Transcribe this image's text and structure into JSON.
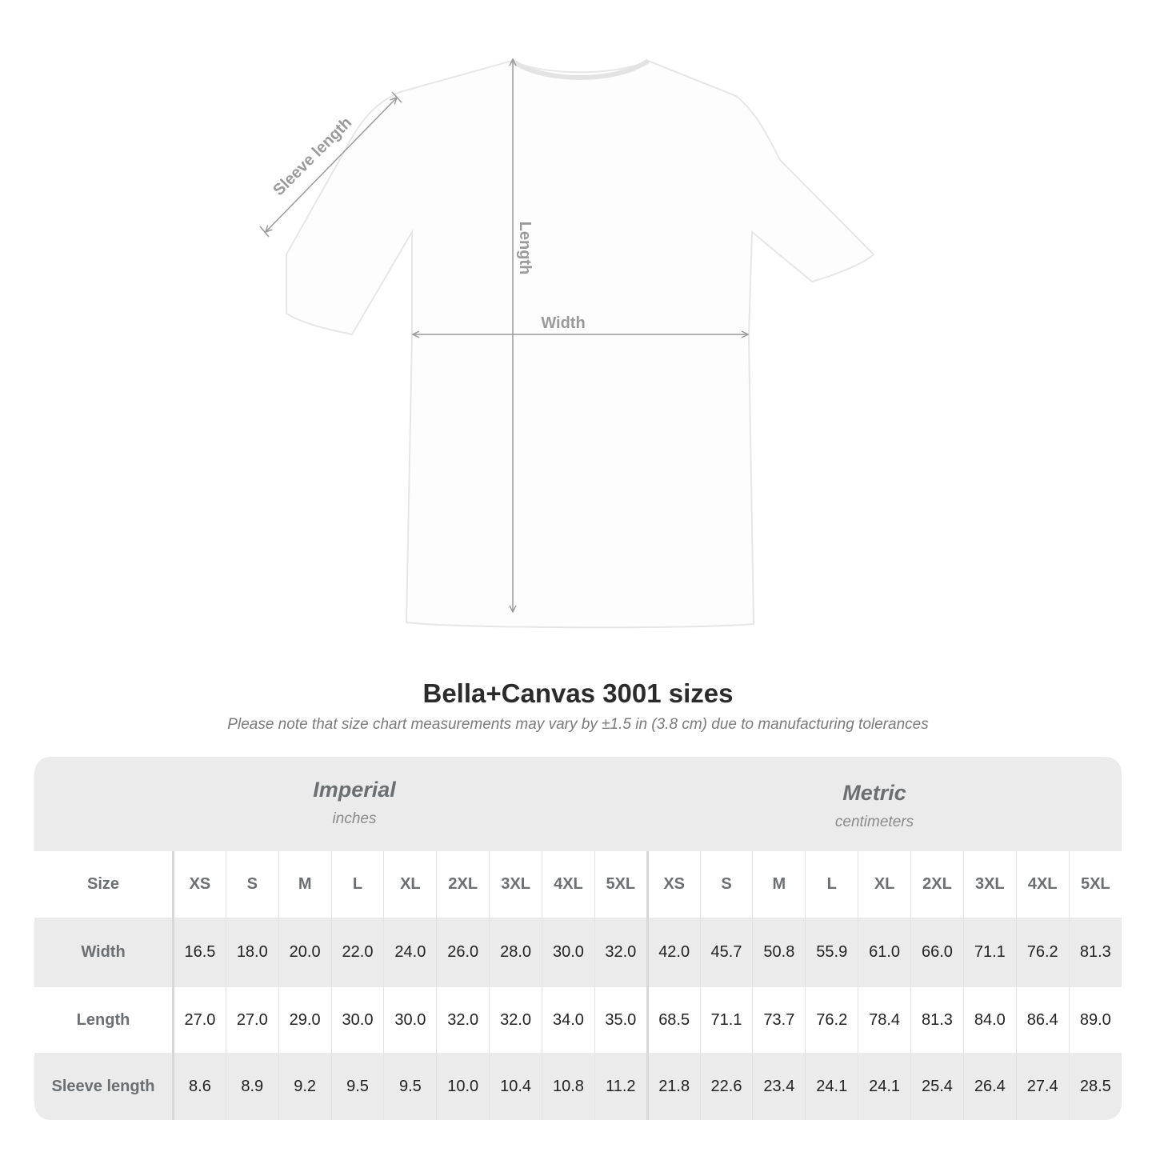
{
  "diagram": {
    "labels": {
      "sleeve": "Sleeve length",
      "length": "Length",
      "width": "Width"
    }
  },
  "title": "Bella+Canvas 3001 sizes",
  "subtitle": "Please note that size chart measurements may vary by ±1.5 in (3.8 cm) due to manufacturing tolerances",
  "systems": [
    {
      "name": "Imperial",
      "unit": "inches"
    },
    {
      "name": "Metric",
      "unit": "centimeters"
    }
  ],
  "size_chart": {
    "type": "table",
    "header_label": "Size",
    "sizes": [
      "XS",
      "S",
      "M",
      "L",
      "XL",
      "2XL",
      "3XL",
      "4XL",
      "5XL"
    ],
    "rows": [
      {
        "label": "Width",
        "imperial": [
          "16.5",
          "18.0",
          "20.0",
          "22.0",
          "24.0",
          "26.0",
          "28.0",
          "30.0",
          "32.0"
        ],
        "metric": [
          "42.0",
          "45.7",
          "50.8",
          "55.9",
          "61.0",
          "66.0",
          "71.1",
          "76.2",
          "81.3"
        ]
      },
      {
        "label": "Length",
        "imperial": [
          "27.0",
          "27.0",
          "29.0",
          "30.0",
          "30.0",
          "32.0",
          "32.0",
          "34.0",
          "35.0"
        ],
        "metric": [
          "68.5",
          "71.1",
          "73.7",
          "76.2",
          "78.4",
          "81.3",
          "84.0",
          "86.4",
          "89.0"
        ]
      },
      {
        "label": "Sleeve length",
        "imperial": [
          "8.6",
          "8.9",
          "9.2",
          "9.5",
          "9.5",
          "10.0",
          "10.4",
          "10.8",
          "11.2"
        ],
        "metric": [
          "21.8",
          "22.6",
          "23.4",
          "24.1",
          "24.1",
          "25.4",
          "26.4",
          "27.4",
          "28.5"
        ]
      }
    ]
  },
  "colors": {
    "band": "#ebebeb",
    "label_text": "#6b6f72",
    "arrow": "#a0a0a0"
  }
}
